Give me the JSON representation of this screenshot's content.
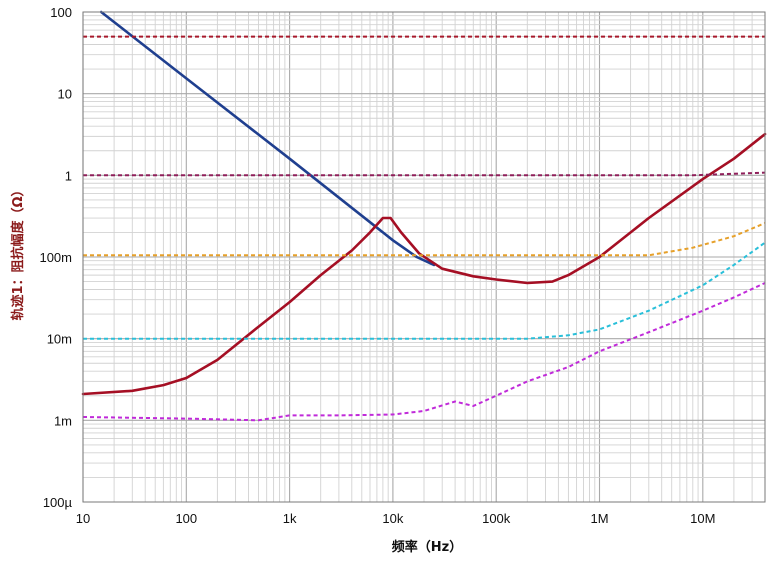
{
  "chart_data": {
    "type": "line",
    "title": "",
    "xlabel": "频率（Hz）",
    "ylabel": "轨迹1：阻抗幅度（Ω）",
    "x_scale": "log",
    "y_scale": "log",
    "xlim": [
      10,
      40000000
    ],
    "ylim": [
      0.0001,
      100
    ],
    "grid": true,
    "legend": "none",
    "x_ticks": [
      {
        "value": 10,
        "label": "10"
      },
      {
        "value": 100,
        "label": "100"
      },
      {
        "value": 1000,
        "label": "1k"
      },
      {
        "value": 10000,
        "label": "10k"
      },
      {
        "value": 100000,
        "label": "100k"
      },
      {
        "value": 1000000,
        "label": "1M"
      },
      {
        "value": 10000000,
        "label": "10M"
      }
    ],
    "y_ticks": [
      {
        "value": 100,
        "label": "100"
      },
      {
        "value": 10,
        "label": "10"
      },
      {
        "value": 1,
        "label": "1"
      },
      {
        "value": 0.1,
        "label": "100m"
      },
      {
        "value": 0.01,
        "label": "10m"
      },
      {
        "value": 0.001,
        "label": "1m"
      },
      {
        "value": 0.0001,
        "label": "100µ"
      }
    ],
    "series": [
      {
        "color": "#1f3f8f",
        "style": "solid",
        "points": [
          [
            15,
            100
          ],
          [
            100,
            15.4
          ],
          [
            1000,
            1.6
          ],
          [
            10000,
            0.16
          ],
          [
            17000,
            0.1
          ],
          [
            25000,
            0.08
          ]
        ]
      },
      {
        "color": "#a50f24",
        "style": "solid",
        "points": [
          [
            10,
            0.0021
          ],
          [
            30,
            0.0023
          ],
          [
            60,
            0.0027
          ],
          [
            100,
            0.0033
          ],
          [
            200,
            0.0055
          ],
          [
            500,
            0.014
          ],
          [
            1000,
            0.028
          ],
          [
            2000,
            0.06
          ],
          [
            4000,
            0.12
          ],
          [
            6000,
            0.2
          ],
          [
            8000,
            0.3
          ],
          [
            9500,
            0.3
          ],
          [
            12000,
            0.2
          ],
          [
            18000,
            0.11
          ],
          [
            30000,
            0.072
          ],
          [
            60000,
            0.058
          ],
          [
            100000,
            0.053
          ],
          [
            200000,
            0.048
          ],
          [
            350000,
            0.05
          ],
          [
            500000,
            0.06
          ],
          [
            1000000,
            0.1
          ],
          [
            3000000,
            0.3
          ],
          [
            10000000,
            0.9
          ],
          [
            20000000,
            1.6
          ],
          [
            40000000,
            3.2
          ]
        ]
      },
      {
        "color": "#a8192b",
        "style": "dashed",
        "points": [
          [
            10,
            50
          ],
          [
            40000000,
            50
          ]
        ]
      },
      {
        "color": "#8f1f5a",
        "style": "dashed",
        "points": [
          [
            10,
            1
          ],
          [
            8000000,
            1
          ],
          [
            40000000,
            1.08
          ]
        ]
      },
      {
        "color": "#e6a02a",
        "style": "dashed",
        "points": [
          [
            10,
            0.105
          ],
          [
            3000000,
            0.105
          ],
          [
            8000000,
            0.13
          ],
          [
            20000000,
            0.18
          ],
          [
            40000000,
            0.26
          ]
        ]
      },
      {
        "color": "#29bfd9",
        "style": "dashed",
        "points": [
          [
            10,
            0.01
          ],
          [
            200000,
            0.01
          ],
          [
            500000,
            0.011
          ],
          [
            1000000,
            0.013
          ],
          [
            3000000,
            0.022
          ],
          [
            10000000,
            0.045
          ],
          [
            20000000,
            0.08
          ],
          [
            40000000,
            0.15
          ]
        ]
      },
      {
        "color": "#c02ad9",
        "style": "dashed",
        "points": [
          [
            10,
            0.0011
          ],
          [
            100,
            0.00105
          ],
          [
            500,
            0.001
          ],
          [
            1000,
            0.00115
          ],
          [
            3000,
            0.00115
          ],
          [
            10000,
            0.00118
          ],
          [
            20000,
            0.0013
          ],
          [
            40000,
            0.0017
          ],
          [
            60000,
            0.0015
          ],
          [
            100000,
            0.002
          ],
          [
            200000,
            0.003
          ],
          [
            500000,
            0.0045
          ],
          [
            1000000,
            0.007
          ],
          [
            3000000,
            0.012
          ],
          [
            10000000,
            0.022
          ],
          [
            20000000,
            0.032
          ],
          [
            40000000,
            0.048
          ]
        ]
      }
    ]
  }
}
